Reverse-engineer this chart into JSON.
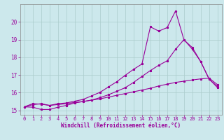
{
  "xlabel": "Windchill (Refroidissement éolien,°C)",
  "bg_color": "#cce8ec",
  "grid_color": "#aacccc",
  "line_color": "#990099",
  "spine_color": "#888888",
  "xlim": [
    -0.5,
    23.5
  ],
  "ylim": [
    14.75,
    21.0
  ],
  "yticks": [
    15,
    16,
    17,
    18,
    19,
    20
  ],
  "xticks": [
    0,
    1,
    2,
    3,
    4,
    5,
    6,
    7,
    8,
    9,
    10,
    11,
    12,
    13,
    14,
    15,
    16,
    17,
    18,
    19,
    20,
    21,
    22,
    23
  ],
  "line1_x": [
    0,
    1,
    2,
    3,
    4,
    5,
    6,
    7,
    8,
    9,
    10,
    11,
    12,
    13,
    14,
    15,
    16,
    17,
    18,
    19,
    20,
    21,
    22,
    23
  ],
  "line1_y": [
    15.2,
    15.38,
    15.35,
    15.28,
    15.33,
    15.38,
    15.45,
    15.5,
    15.58,
    15.65,
    15.75,
    15.85,
    15.95,
    16.05,
    16.15,
    16.25,
    16.38,
    16.48,
    16.58,
    16.65,
    16.72,
    16.78,
    16.82,
    16.45
  ],
  "line2_x": [
    0,
    1,
    2,
    3,
    4,
    5,
    6,
    7,
    8,
    9,
    10,
    11,
    12,
    13,
    14,
    15,
    16,
    17,
    18,
    19,
    20,
    21,
    22,
    23
  ],
  "line2_y": [
    15.2,
    15.18,
    15.05,
    15.05,
    15.18,
    15.28,
    15.42,
    15.5,
    15.58,
    15.72,
    15.88,
    16.08,
    16.28,
    16.58,
    16.92,
    17.25,
    17.55,
    17.8,
    18.45,
    19.0,
    18.45,
    17.75,
    16.75,
    16.35
  ],
  "line3_x": [
    0,
    1,
    2,
    3,
    4,
    5,
    6,
    7,
    8,
    9,
    10,
    11,
    12,
    13,
    14,
    15,
    16,
    17,
    18,
    19,
    20,
    21,
    22,
    23
  ],
  "line3_y": [
    15.2,
    15.32,
    15.38,
    15.28,
    15.38,
    15.42,
    15.52,
    15.62,
    15.82,
    16.02,
    16.32,
    16.62,
    16.98,
    17.32,
    17.62,
    19.72,
    19.48,
    19.68,
    20.62,
    18.98,
    18.55,
    17.75,
    16.78,
    16.28
  ],
  "xlabel_fontsize": 5.5,
  "tick_fontsize": 5,
  "ytick_fontsize": 5.5,
  "lw": 0.8,
  "ms": 2.0
}
